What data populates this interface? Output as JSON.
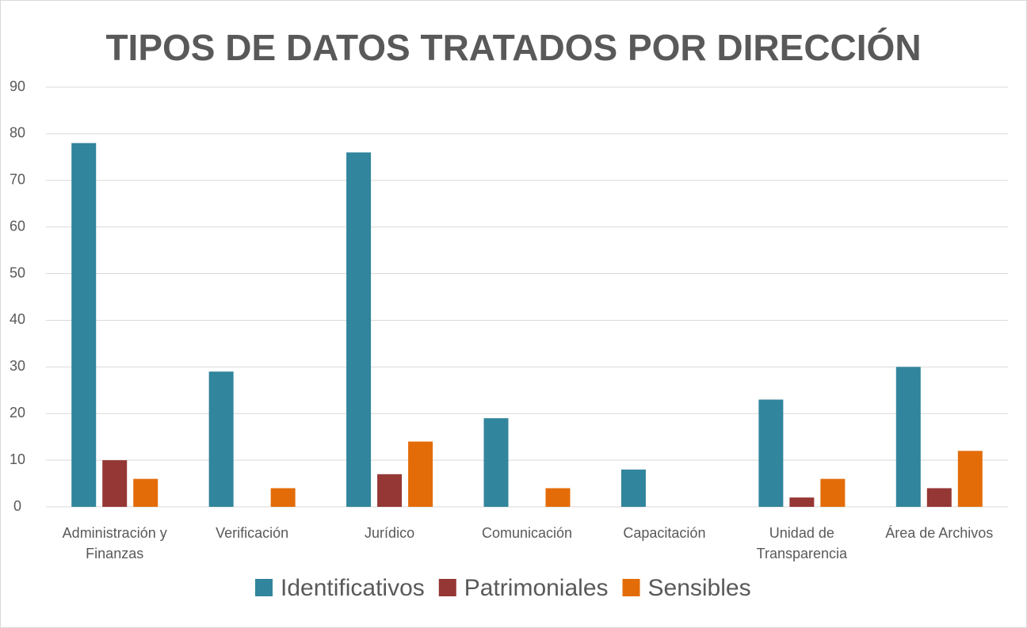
{
  "chart_data": {
    "type": "bar",
    "title": "TIPOS DE DATOS TRATADOS POR DIRECCIÓN",
    "categories": [
      "Administración y Finanzas",
      "Verificación",
      "Jurídico",
      "Comunicación",
      "Capacitación",
      "Unidad de Transparencia",
      "Área de Archivos"
    ],
    "series": [
      {
        "name": "Identificativos",
        "color": "#31859c",
        "values": [
          78,
          29,
          76,
          19,
          8,
          23,
          30
        ]
      },
      {
        "name": "Patrimoniales",
        "color": "#953735",
        "values": [
          10,
          0,
          7,
          0,
          0,
          2,
          4
        ]
      },
      {
        "name": "Sensibles",
        "color": "#e36c09",
        "values": [
          6,
          4,
          14,
          4,
          0,
          6,
          12
        ]
      }
    ],
    "ylim": [
      0,
      90
    ],
    "yticks": [
      0,
      10,
      20,
      30,
      40,
      50,
      60,
      70,
      80,
      90
    ],
    "grid": true,
    "legend": "bottom"
  }
}
